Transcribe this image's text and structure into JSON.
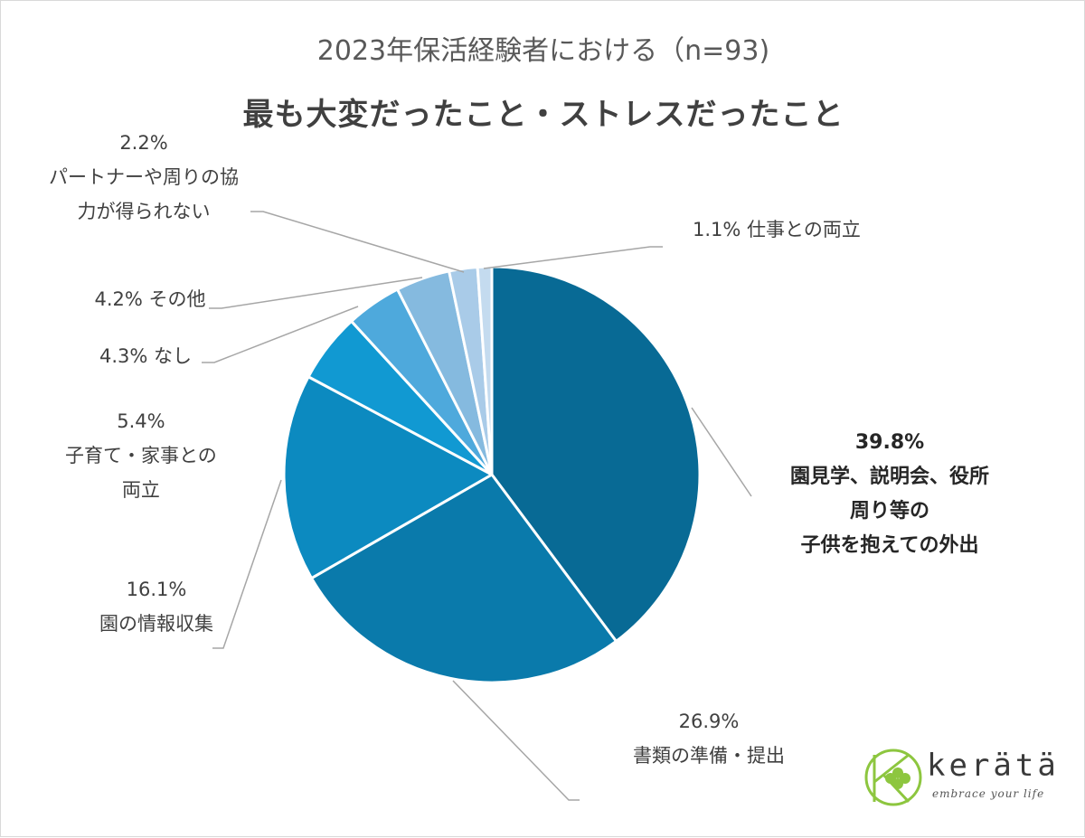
{
  "chart_data": {
    "type": "pie",
    "title": "2023年保活経験者における（n=93)",
    "subtitle": "最も大変だったこと・ストレスだったこと",
    "slices": [
      {
        "label": "園見学、説明会、役所周り等の子供を抱えての外出",
        "label_lines": [
          "園見学、説明会、役所",
          "周り等の",
          "子供を抱えての外出"
        ],
        "value": 39.8,
        "value_text": "39.8%",
        "color": "#086a95"
      },
      {
        "label": "書類の準備・提出",
        "label_lines": [
          "書類の準備・提出"
        ],
        "value": 26.9,
        "value_text": "26.9%",
        "color": "#0a7aab"
      },
      {
        "label": "園の情報収集",
        "label_lines": [
          "園の情報収集"
        ],
        "value": 16.1,
        "value_text": "16.1%",
        "color": "#0c8ac0"
      },
      {
        "label": "子育て・家事との両立",
        "label_lines": [
          "子育て・家事との",
          "両立"
        ],
        "value": 5.4,
        "value_text": "5.4%",
        "color": "#1199d2"
      },
      {
        "label": "なし",
        "label_lines": [
          "なし"
        ],
        "value": 4.3,
        "value_text": "4.3%",
        "color": "#4ea9dc"
      },
      {
        "label": "その他",
        "label_lines": [
          "その他"
        ],
        "value": 4.2,
        "value_text": "4.2%",
        "color": "#85badf"
      },
      {
        "label": "パートナーや周りの協力が得られない",
        "label_lines": [
          "パートナーや周りの協",
          "力が得られない"
        ],
        "value": 2.2,
        "value_text": "2.2%",
        "color": "#a9cbe8"
      },
      {
        "label": "仕事との両立",
        "label_lines": [
          "仕事との両立"
        ],
        "value": 1.1,
        "value_text": "1.1%",
        "color": "#c4dbef"
      }
    ]
  },
  "logo": {
    "word": "kerätä",
    "tagline": "embrace your life",
    "colors": {
      "green": "#8dc63f",
      "grey": "#3a3a3a"
    }
  }
}
